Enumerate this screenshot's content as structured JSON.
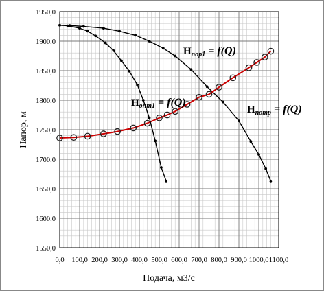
{
  "chart_data": {
    "type": "line",
    "xlabel": "Подача, м3/с",
    "ylabel": "Напор, м",
    "xlim": [
      0,
      1.1
    ],
    "ylim": [
      1550,
      1950
    ],
    "x_ticks": [
      "0,0",
      "100,0",
      "200,0",
      "300,0",
      "400,0",
      "500,0",
      "600,0",
      "700,0",
      "800,0",
      "900,0",
      "1000,0",
      "1100,0"
    ],
    "y_ticks": [
      "1550,0",
      "1600,0",
      "1650,0",
      "1700,0",
      "1750,0",
      "1800,0",
      "1850,0",
      "1900,0",
      "1950,0"
    ],
    "grid": true,
    "minor_grid": true,
    "series": [
      {
        "label_main": "H",
        "label_sub": "пор1",
        "label_rest": " = f(Q)",
        "color": "#000000",
        "marker": "circle-filled",
        "x": [
          0.0,
          0.05,
          0.12,
          0.22,
          0.3,
          0.38,
          0.45,
          0.52,
          0.58,
          0.66,
          0.74,
          0.82,
          0.9,
          0.96,
          1.0,
          1.035,
          1.06
        ],
        "y": [
          1927,
          1926.5,
          1925,
          1922,
          1917,
          1910,
          1900,
          1888,
          1875,
          1852,
          1823,
          1797,
          1765,
          1730,
          1708,
          1684,
          1663
        ]
      },
      {
        "label_main": "H",
        "label_sub": "потр",
        "label_rest": " = f(Q)",
        "color": "#cc0000",
        "marker": "circle-open",
        "x": [
          0.0,
          0.07,
          0.14,
          0.22,
          0.29,
          0.37,
          0.44,
          0.5,
          0.54,
          0.58,
          0.64,
          0.7,
          0.75,
          0.8,
          0.87,
          0.95,
          0.99,
          1.03,
          1.06
        ],
        "y": [
          1736,
          1737,
          1739,
          1743,
          1747,
          1753,
          1761,
          1770,
          1775,
          1781,
          1793,
          1805,
          1810,
          1822,
          1838,
          1855,
          1864,
          1873,
          1883
        ]
      },
      {
        "label_main": "H",
        "label_sub": "опт1",
        "label_rest": " = f(Q)",
        "color": "#000000",
        "marker": "circle-filled",
        "x": [
          0.0,
          0.04,
          0.1,
          0.14,
          0.18,
          0.23,
          0.27,
          0.31,
          0.35,
          0.39,
          0.42,
          0.45,
          0.48,
          0.51,
          0.535
        ],
        "y": [
          1927,
          1926,
          1922,
          1917,
          1909,
          1897,
          1884,
          1867,
          1849,
          1826,
          1800,
          1770,
          1731,
          1686,
          1663
        ]
      }
    ]
  }
}
